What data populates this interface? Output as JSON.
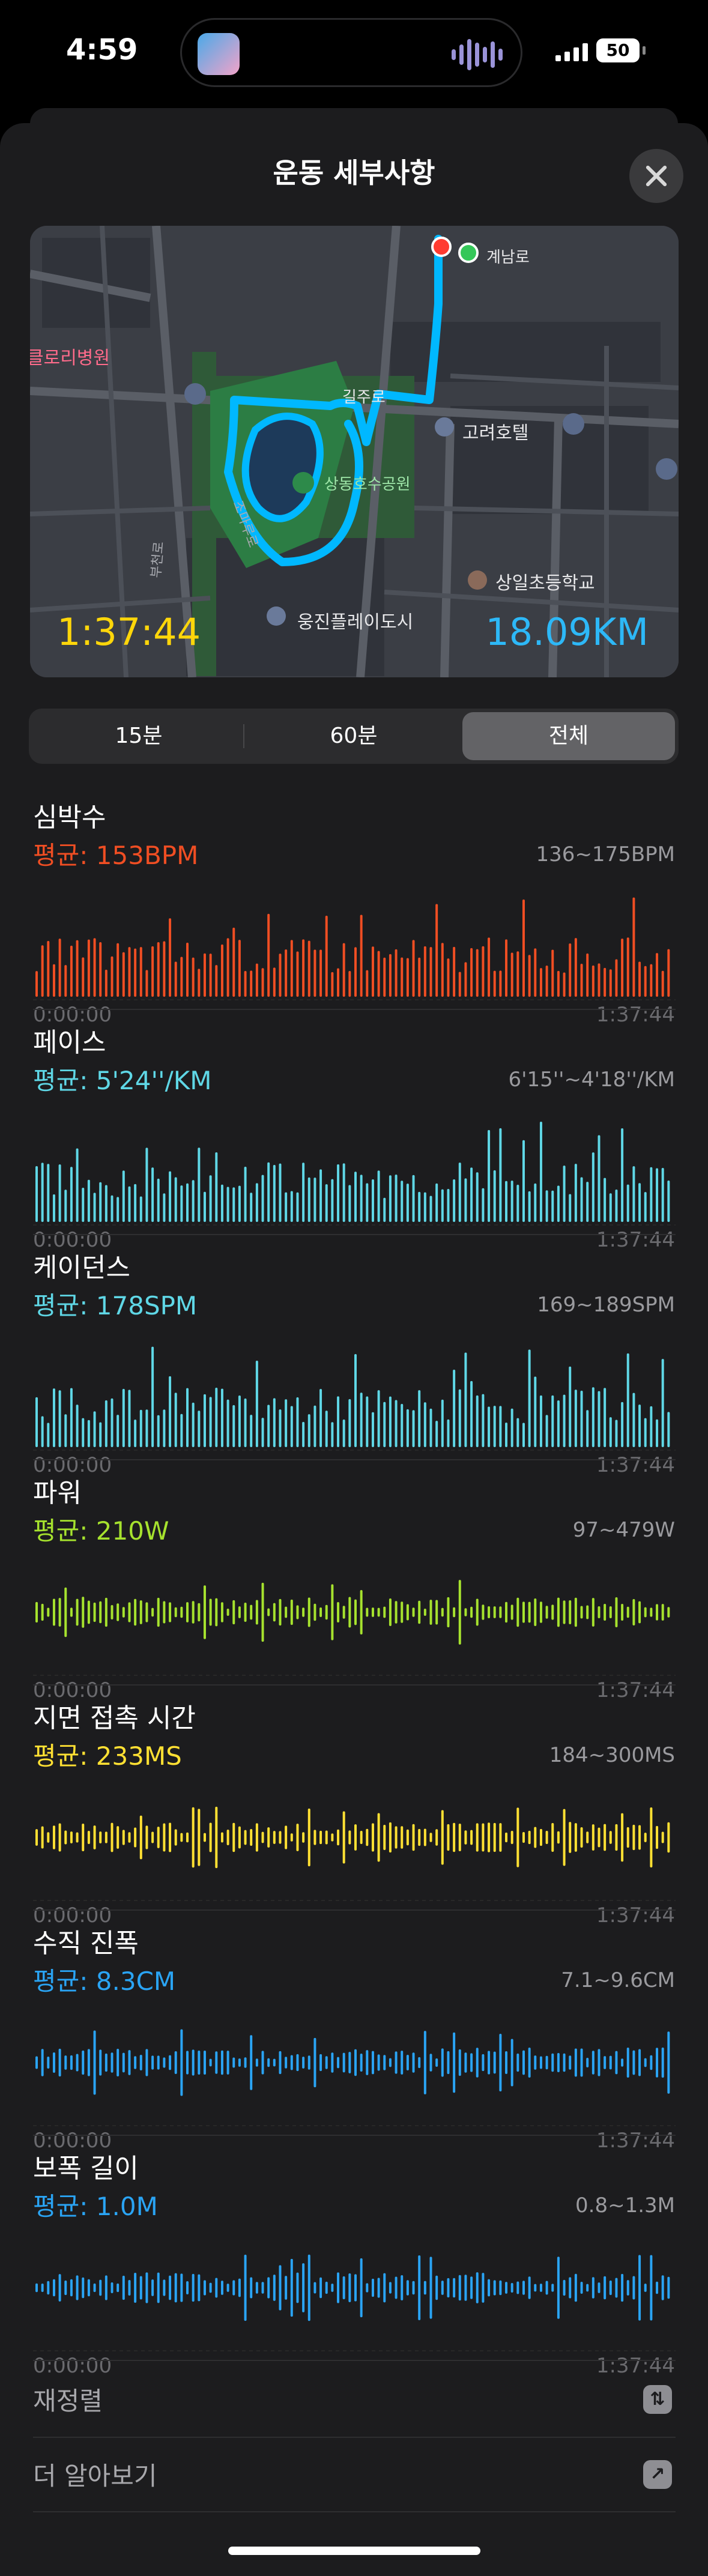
{
  "status_bar": {
    "time": "4:59",
    "battery": "50"
  },
  "sheet": {
    "title": "운동 세부사항"
  },
  "map": {
    "duration": "1:37:44",
    "distance": "18.09KM",
    "labels": {
      "hospital": "클로리병원",
      "road_top": "계남로",
      "road_mid": "길주로",
      "hotel": "고려호텔",
      "park": "상동호수공원",
      "school": "상일초등학교",
      "plaza": "웅진플레이도시",
      "road_left": "부천로",
      "road_curve": "조마루로"
    }
  },
  "segments": {
    "options": [
      "15분",
      "60분",
      "전체"
    ],
    "selected": 2
  },
  "metrics": [
    {
      "name": "심박수",
      "avg": "평균: 153BPM",
      "range": "136~175BPM",
      "start": "0:00:00",
      "end": "1:37:44",
      "color": "#f04e23",
      "chart": "bars_up"
    },
    {
      "name": "페이스",
      "avg": "평균: 5'24''/KM",
      "range": "6'15''~4'18''/KM",
      "start": "0:00:00",
      "end": "1:37:44",
      "color": "#5fd7e6",
      "chart": "bars_up"
    },
    {
      "name": "케이던스",
      "avg": "평균: 178SPM",
      "range": "169~189SPM",
      "start": "0:00:00",
      "end": "1:37:44",
      "color": "#5fd7e6",
      "chart": "bars_up"
    },
    {
      "name": "파워",
      "avg": "평균: 210W",
      "range": "97~479W",
      "start": "0:00:00",
      "end": "1:37:44",
      "color": "#a6e22e",
      "chart": "center"
    },
    {
      "name": "지면 접촉 시간",
      "avg": "평균: 233MS",
      "range": "184~300MS",
      "start": "0:00:00",
      "end": "1:37:44",
      "color": "#ffe033",
      "chart": "center"
    },
    {
      "name": "수직 진폭",
      "avg": "평균: 8.3CM",
      "range": "7.1~9.6CM",
      "start": "0:00:00",
      "end": "1:37:44",
      "color": "#2aa4f4",
      "chart": "center"
    },
    {
      "name": "보폭 길이",
      "avg": "평균: 1.0M",
      "range": "0.8~1.3M",
      "start": "0:00:00",
      "end": "1:37:44",
      "color": "#2aa4f4",
      "chart": "center"
    }
  ],
  "rows": [
    {
      "label": "재정렬",
      "icon": "reorder-icon"
    },
    {
      "label": "더 알아보기",
      "icon": "external-link-icon"
    }
  ]
}
